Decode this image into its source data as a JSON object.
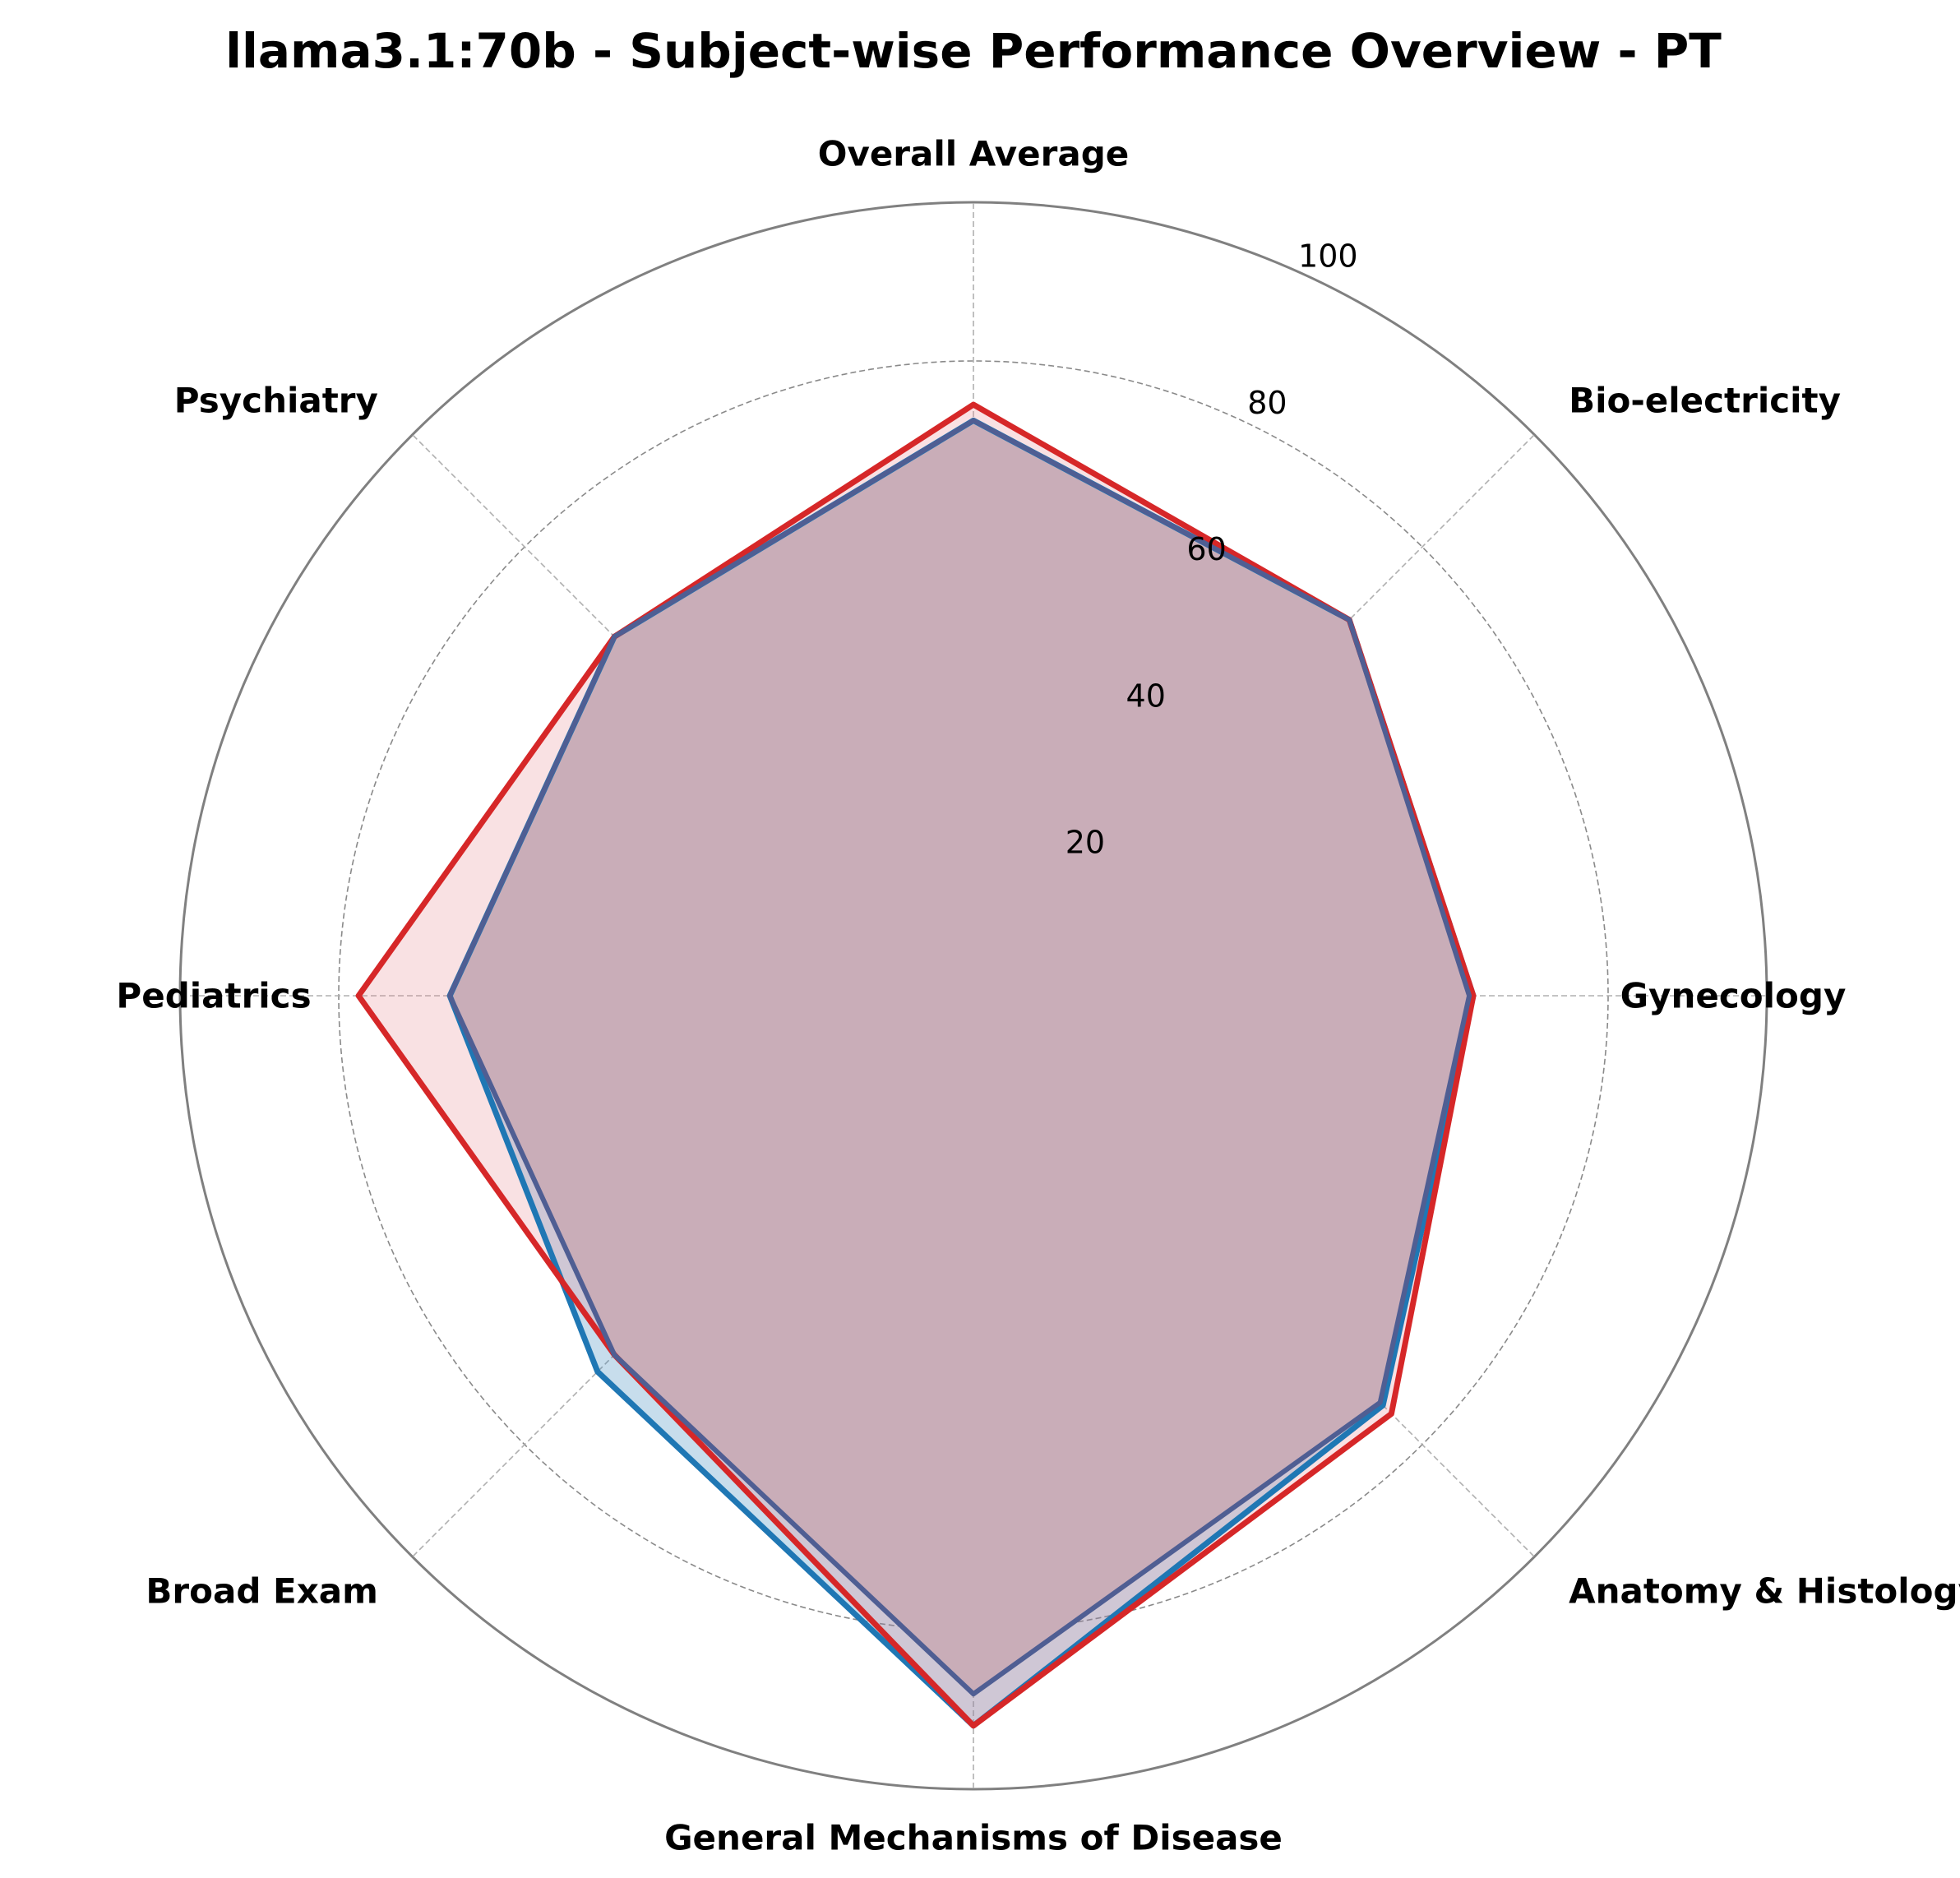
{
  "chart_data": {
    "type": "radar",
    "title": "llama3.1:70b - Subject-wise Performance Overview - PT",
    "categories": [
      "Overall Average",
      "Bio-electricity",
      "Gynecology",
      "Anatomy & Histology",
      "General Mechanisms of Disease",
      "Broad Exam",
      "Pediatrics",
      "Psychiatry"
    ],
    "rlim": [
      0,
      100
    ],
    "rticks": [
      20,
      40,
      60,
      80,
      100
    ],
    "grid": true,
    "series": [
      {
        "values": [
          72.5,
          67,
          63,
          73,
          92,
          67,
          66,
          64
        ],
        "color": "#1f77b4",
        "fill_color": "#1f77b4"
      },
      {
        "values": [
          74.5,
          67,
          63,
          74.5,
          92,
          64,
          77.5,
          64
        ],
        "color": "#d62728",
        "fill_color": "#e8898f"
      },
      {
        "values": [
          72.5,
          67,
          62.5,
          72.5,
          88,
          64,
          66,
          64
        ],
        "color": "#4f5e93",
        "fill_color": "#c9adb8"
      }
    ]
  }
}
